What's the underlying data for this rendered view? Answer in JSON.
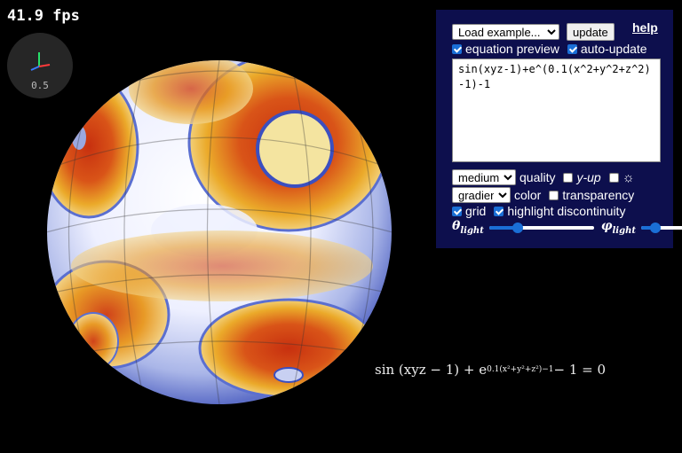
{
  "fps_counter": "41.9 fps",
  "axes_widget": {
    "scale_label": "0.5"
  },
  "panel": {
    "example_select": "Load example...",
    "update_button": "update",
    "help_link": "help",
    "equation_preview": {
      "label": "equation preview",
      "checked": true
    },
    "auto_update": {
      "label": "auto-update",
      "checked": true
    },
    "equation_text": "sin(xyz-1)+e^(0.1(x^2+y^2+z^2)-1)-1",
    "quality_select": "medium",
    "quality_label": "quality",
    "y_up": {
      "label": "y-up",
      "checked": false
    },
    "light_toggle": {
      "icon": "sun-icon",
      "checked": false
    },
    "color_select": "gradient",
    "color_label": "color",
    "transparency": {
      "label": "transparency",
      "checked": false
    },
    "grid": {
      "label": "grid",
      "checked": true
    },
    "highlight_discontinuity": {
      "label": "highlight discontinuity",
      "checked": true
    },
    "theta_light": {
      "symbol": "θ",
      "subscript": "light",
      "value_fraction": 0.27
    },
    "phi_light": {
      "symbol": "φ",
      "subscript": "light",
      "value_fraction": 0.3
    }
  },
  "rendered_equation": {
    "prefix": "sin (xyz − 1) + e",
    "exponent": "0.1(x²+y²+z²)−1",
    "suffix": " − 1 = 0"
  },
  "colors": {
    "panel_bg": "#0d0f4d",
    "accent": "#1a6fd6",
    "surface_inner": "#c23a10",
    "surface_mid": "#e8a21c",
    "surface_outer": "#f4e4a0",
    "surface_edge": "#6f83d8"
  }
}
